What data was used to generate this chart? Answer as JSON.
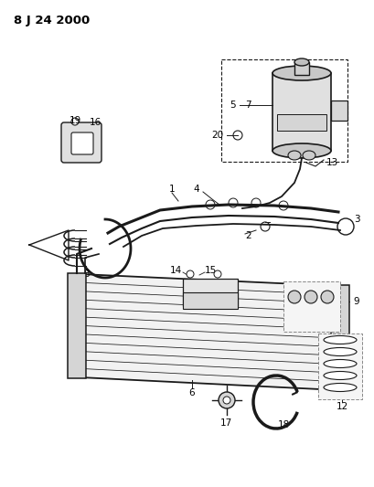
{
  "title": "8 J 24 2000",
  "background_color": "#ffffff",
  "line_color": "#1a1a1a",
  "label_color": "#000000",
  "title_fontsize": 10,
  "label_fontsize": 7.5,
  "fig_width": 4.1,
  "fig_height": 5.33,
  "dpi": 100
}
